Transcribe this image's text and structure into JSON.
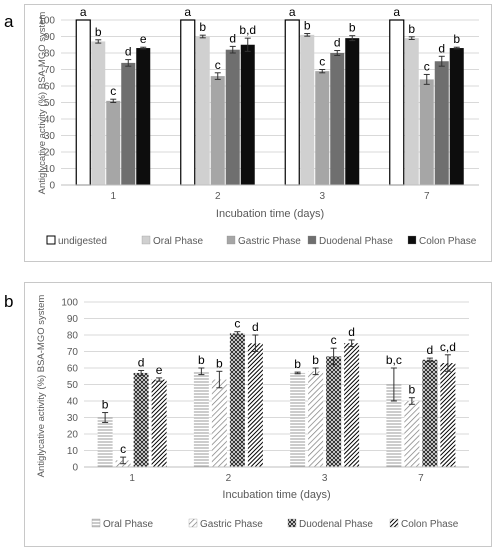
{
  "panel_a": {
    "letter": "a"
  },
  "panel_b": {
    "letter": "b"
  },
  "colors": {
    "undigested": "#ffffff",
    "oral": "#d0d0d0",
    "gastric": "#a6a6a6",
    "duodenal": "#6f6f6f",
    "colon": "#0d0d0d",
    "grid": "#d9d9d9",
    "axis_text": "#595959"
  },
  "chart_data": [
    {
      "type": "bar",
      "panel": "a",
      "xlabel": "Incubation time (days)",
      "ylabel": "Antiglycative activity (%) BSA-MGO system",
      "ylim": [
        0,
        100
      ],
      "yticks": [
        0,
        10,
        20,
        30,
        40,
        50,
        60,
        70,
        80,
        90,
        100
      ],
      "grid": true,
      "legend_position": "bottom",
      "categories": [
        "1",
        "2",
        "3",
        "7"
      ],
      "series": [
        {
          "name": "undigested",
          "values": [
            100,
            100,
            100,
            100
          ],
          "errors": [
            0,
            0,
            0,
            0
          ],
          "labels": [
            "a",
            "a",
            "a",
            "a"
          ]
        },
        {
          "name": "Oral Phase",
          "values": [
            87,
            90,
            91,
            89
          ],
          "errors": [
            1,
            0.8,
            0.8,
            0.8
          ],
          "labels": [
            "b",
            "b",
            "b",
            "b"
          ]
        },
        {
          "name": "Gastric Phase",
          "values": [
            51,
            66,
            69,
            64
          ],
          "errors": [
            1,
            2,
            1,
            3
          ],
          "labels": [
            "c",
            "c",
            "c",
            "c"
          ]
        },
        {
          "name": "Duodenal Phase",
          "values": [
            74,
            82,
            80,
            75
          ],
          "errors": [
            2,
            2,
            1.5,
            3
          ],
          "labels": [
            "d",
            "d",
            "d",
            "d"
          ]
        },
        {
          "name": "Colon Phase",
          "values": [
            83,
            85,
            89,
            83
          ],
          "errors": [
            0.5,
            4,
            1.5,
            0.5
          ],
          "labels": [
            "e",
            "b,d",
            "b",
            "b"
          ]
        }
      ]
    },
    {
      "type": "bar",
      "panel": "b",
      "xlabel": "Incubation time (days)",
      "ylabel": "Antiglycative activity (%) BSA-MGO system",
      "ylim": [
        0,
        100
      ],
      "yticks": [
        0,
        10,
        20,
        30,
        40,
        50,
        60,
        70,
        80,
        90,
        100
      ],
      "grid": true,
      "legend_position": "bottom",
      "categories": [
        "1",
        "2",
        "3",
        "7"
      ],
      "series": [
        {
          "name": "Oral Phase",
          "values": [
            30,
            58,
            57,
            50
          ],
          "errors": [
            3,
            2,
            0.5,
            10
          ],
          "labels": [
            "b",
            "b",
            "b",
            "b,c"
          ]
        },
        {
          "name": "Gastric Phase",
          "values": [
            4,
            53,
            58,
            40
          ],
          "errors": [
            2,
            5,
            2,
            2
          ],
          "labels": [
            "c",
            "b",
            "b",
            "b"
          ]
        },
        {
          "name": "Duodenal Phase",
          "values": [
            57,
            81,
            67,
            65
          ],
          "errors": [
            1.5,
            1,
            5,
            1
          ],
          "labels": [
            "d",
            "c",
            "c",
            "d"
          ]
        },
        {
          "name": "Colon Phase",
          "values": [
            53,
            75,
            75,
            63
          ],
          "errors": [
            1,
            5,
            2,
            5
          ],
          "labels": [
            "e",
            "d",
            "d",
            "c,d"
          ]
        }
      ]
    }
  ]
}
